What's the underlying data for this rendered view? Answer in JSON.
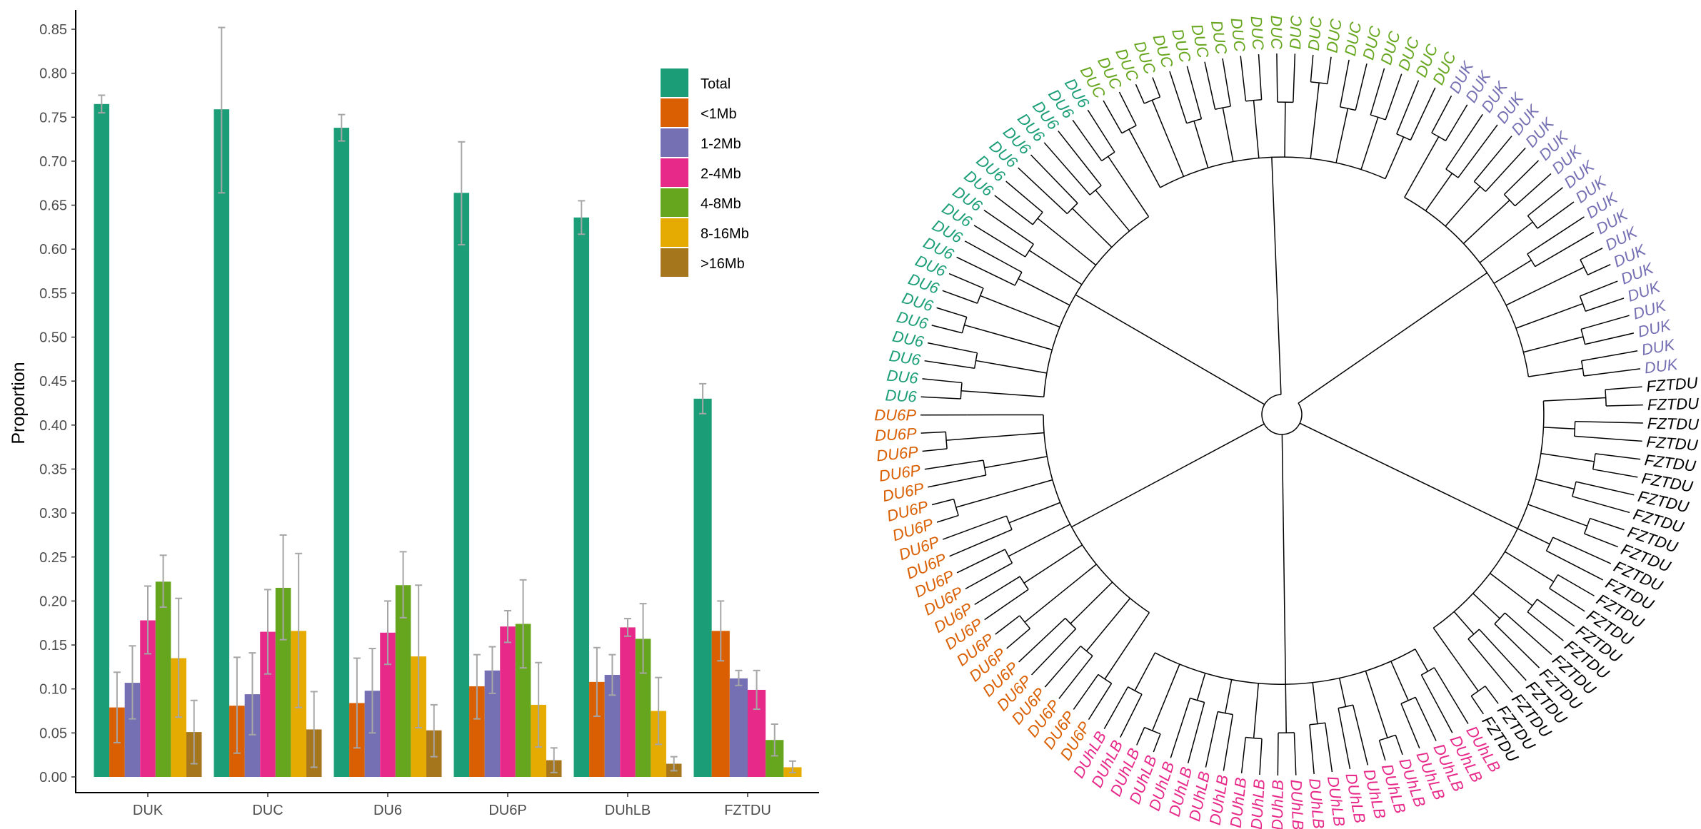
{
  "chart_data": [
    {
      "type": "bar",
      "title": "",
      "xlabel": "",
      "ylabel": "Proportion",
      "ylim": [
        0,
        0.85
      ],
      "yticks": [
        "0.00",
        "0.05",
        "0.10",
        "0.15",
        "0.20",
        "0.25",
        "0.30",
        "0.35",
        "0.40",
        "0.45",
        "0.50",
        "0.55",
        "0.60",
        "0.65",
        "0.70",
        "0.75",
        "0.80",
        "0.85"
      ],
      "grid": false,
      "legend_position": "top-right",
      "categories": [
        "DUK",
        "DUC",
        "DU6",
        "DU6P",
        "DUhLB",
        "FZTDU"
      ],
      "error_bar_color": "#a6a6a6",
      "series": [
        {
          "name": "Total",
          "color": "#1b9e77",
          "values": [
            0.765,
            0.759,
            0.738,
            0.664,
            0.636,
            0.43
          ],
          "err_low": [
            0.755,
            0.664,
            0.723,
            0.605,
            0.617,
            0.413
          ],
          "err_high": [
            0.775,
            0.852,
            0.753,
            0.722,
            0.655,
            0.447
          ]
        },
        {
          "name": "<1Mb",
          "color": "#d95f02",
          "values": [
            0.079,
            0.081,
            0.084,
            0.103,
            0.108,
            0.166
          ],
          "err_low": [
            0.039,
            0.027,
            0.033,
            0.066,
            0.069,
            0.132
          ],
          "err_high": [
            0.119,
            0.136,
            0.135,
            0.139,
            0.147,
            0.2
          ]
        },
        {
          "name": "1-2Mb",
          "color": "#7570b3",
          "values": [
            0.107,
            0.094,
            0.098,
            0.121,
            0.116,
            0.112
          ],
          "err_low": [
            0.066,
            0.048,
            0.05,
            0.095,
            0.093,
            0.104
          ],
          "err_high": [
            0.149,
            0.141,
            0.146,
            0.148,
            0.139,
            0.121
          ]
        },
        {
          "name": "2-4Mb",
          "color": "#e7298a",
          "values": [
            0.178,
            0.165,
            0.164,
            0.171,
            0.17,
            0.099
          ],
          "err_low": [
            0.14,
            0.117,
            0.128,
            0.153,
            0.16,
            0.077
          ],
          "err_high": [
            0.217,
            0.213,
            0.2,
            0.189,
            0.18,
            0.121
          ]
        },
        {
          "name": "4-8Mb",
          "color": "#66a61e",
          "values": [
            0.222,
            0.215,
            0.218,
            0.174,
            0.157,
            0.042
          ],
          "err_low": [
            0.193,
            0.156,
            0.181,
            0.124,
            0.118,
            0.024
          ],
          "err_high": [
            0.252,
            0.275,
            0.256,
            0.224,
            0.197,
            0.06
          ]
        },
        {
          "name": "8-16Mb",
          "color": "#e6ab02",
          "values": [
            0.135,
            0.166,
            0.137,
            0.082,
            0.075,
            0.011
          ],
          "err_low": [
            0.068,
            0.079,
            0.056,
            0.034,
            0.037,
            0.005
          ],
          "err_high": [
            0.203,
            0.254,
            0.218,
            0.13,
            0.113,
            0.018
          ]
        },
        {
          "name": ">16Mb",
          "color": "#a6761d",
          "values": [
            0.051,
            0.054,
            0.053,
            0.019,
            0.015,
            null
          ],
          "err_low": [
            0.015,
            0.011,
            0.023,
            0.005,
            0.007,
            null
          ],
          "err_high": [
            0.087,
            0.097,
            0.082,
            0.033,
            0.023,
            null
          ]
        }
      ]
    },
    {
      "type": "circular-dendrogram",
      "branch_color": "#000000",
      "groups": [
        {
          "label": "DUK",
          "color": "#7570b3",
          "count": 20
        },
        {
          "label": "FZTDU",
          "color": "#000000",
          "count": 22
        },
        {
          "label": "DUhLB",
          "color": "#e7298a",
          "count": 22
        },
        {
          "label": "DU6P",
          "color": "#d95f02",
          "count": 21
        },
        {
          "label": "DU6",
          "color": "#1b9e77",
          "count": 20
        },
        {
          "label": "DUC",
          "color": "#66a61e",
          "count": 20
        }
      ]
    }
  ]
}
